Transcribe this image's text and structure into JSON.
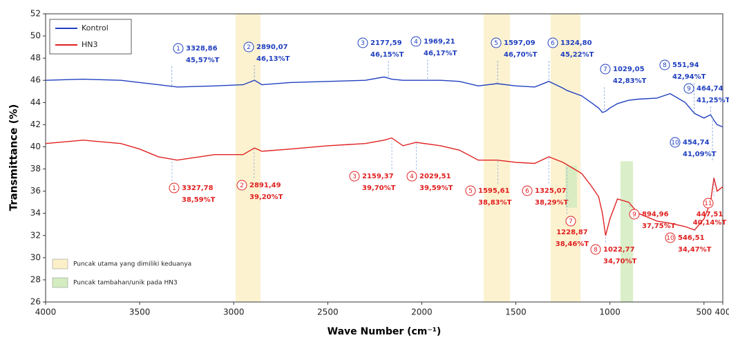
{
  "chart_data": {
    "type": "line",
    "xlabel": "Wave Number (cm⁻¹)",
    "ylabel": "Transmittance (%)",
    "xlim": [
      4000,
      400
    ],
    "ylim": [
      26,
      52
    ],
    "xticks": [
      4000,
      3500,
      3000,
      2500,
      2000,
      1500,
      1000,
      500,
      400
    ],
    "yticks": [
      26,
      28,
      30,
      32,
      34,
      36,
      38,
      40,
      42,
      44,
      46,
      48,
      50,
      52
    ],
    "x": [
      4000,
      3800,
      3600,
      3500,
      3400,
      3300,
      3100,
      2950,
      2890,
      2850,
      2700,
      2500,
      2300,
      2200,
      2160,
      2100,
      2030,
      1900,
      1800,
      1700,
      1600,
      1500,
      1400,
      1325,
      1250,
      1230,
      1150,
      1100,
      1060,
      1040,
      1023,
      1000,
      960,
      900,
      850,
      750,
      680,
      600,
      550,
      500,
      465,
      447,
      430,
      400
    ],
    "series": [
      {
        "name": "Kontrol",
        "color": "#1f3fbf",
        "values": [
          46.0,
          46.1,
          46.0,
          45.8,
          45.6,
          45.4,
          45.5,
          45.6,
          46.0,
          45.6,
          45.8,
          45.9,
          46.0,
          46.3,
          46.1,
          46.0,
          46.0,
          46.0,
          45.9,
          45.5,
          45.7,
          45.5,
          45.4,
          45.9,
          45.3,
          45.1,
          44.6,
          44.0,
          43.5,
          43.1,
          43.2,
          43.5,
          43.9,
          44.2,
          44.3,
          44.4,
          44.8,
          44.0,
          43.0,
          42.6,
          42.9,
          42.4,
          42.0,
          41.8
        ]
      },
      {
        "name": "HN3",
        "color": "#e02020",
        "values": [
          40.3,
          40.6,
          40.3,
          39.8,
          39.1,
          38.8,
          39.3,
          39.3,
          39.9,
          39.6,
          39.8,
          40.1,
          40.3,
          40.6,
          40.8,
          40.1,
          40.4,
          40.1,
          39.7,
          38.8,
          38.8,
          38.6,
          38.5,
          39.1,
          38.6,
          38.4,
          37.6,
          36.5,
          35.5,
          34.0,
          32.0,
          33.5,
          35.3,
          35.0,
          34.0,
          33.3,
          33.1,
          32.8,
          32.5,
          33.5,
          35.0,
          37.2,
          36.0,
          36.4
        ]
      }
    ],
    "regions": [
      {
        "label": "Puncak utama yang dimiliki keduanya",
        "color": "#fbf0c8",
        "spans": [
          [
            2990,
            2857,
            26,
            52
          ],
          [
            1671,
            1531,
            26,
            52
          ],
          [
            1315,
            1156,
            26,
            52
          ]
        ]
      },
      {
        "label": "Puncak tambahan/unik pada HN3",
        "color": "#d3ecc0",
        "spans": [
          [
            1237,
            1175,
            34.5,
            38.3
          ],
          [
            944,
            877,
            26,
            38.7
          ]
        ]
      }
    ],
    "annotations": [
      {
        "series": 0,
        "number": "1",
        "wavenumber": {
          "value": 3328.86,
          "label": "3328,86"
        },
        "transmittance": {
          "value": 45.57,
          "label": "45,57%T"
        }
      },
      {
        "series": 0,
        "number": "2",
        "wavenumber": {
          "value": 2890.07,
          "label": "2890,07"
        },
        "transmittance": {
          "value": 46.13,
          "label": "46,13%T"
        }
      },
      {
        "series": 0,
        "number": "3",
        "wavenumber": {
          "value": 2177.59,
          "label": "2177,59"
        },
        "transmittance": {
          "value": 46.15,
          "label": "46,15%T"
        }
      },
      {
        "series": 0,
        "number": "4",
        "wavenumber": {
          "value": 1969.21,
          "label": "1969,21"
        },
        "transmittance": {
          "value": 46.17,
          "label": "46,17%T"
        }
      },
      {
        "series": 0,
        "number": "5",
        "wavenumber": {
          "value": 1597.09,
          "label": "1597,09"
        },
        "transmittance": {
          "value": 46.7,
          "label": "46,70%T"
        }
      },
      {
        "series": 0,
        "number": "6",
        "wavenumber": {
          "value": 1324.8,
          "label": "1324,80"
        },
        "transmittance": {
          "value": 45.22,
          "label": "45,22%T"
        }
      },
      {
        "series": 0,
        "number": "7",
        "wavenumber": {
          "value": 1029.05,
          "label": "1029,05"
        },
        "transmittance": {
          "value": 42.83,
          "label": "42,83%T"
        }
      },
      {
        "series": 0,
        "number": "8",
        "wavenumber": {
          "value": 551.94,
          "label": "551,94"
        },
        "transmittance": {
          "value": 42.94,
          "label": "42,94%T"
        }
      },
      {
        "series": 0,
        "number": "9",
        "wavenumber": {
          "value": 464.74,
          "label": "464,74"
        },
        "transmittance": {
          "value": 41.25,
          "label": "41,25%T"
        }
      },
      {
        "series": 0,
        "number": "10",
        "wavenumber": {
          "value": 454.74,
          "label": "454,74"
        },
        "transmittance": {
          "value": 41.09,
          "label": "41,09%T"
        }
      },
      {
        "series": 1,
        "number": "1",
        "wavenumber": {
          "value": 3327.78,
          "label": "3327,78"
        },
        "transmittance": {
          "value": 38.59,
          "label": "38,59%T"
        }
      },
      {
        "series": 1,
        "number": "2",
        "wavenumber": {
          "value": 2891.49,
          "label": "2891,49"
        },
        "transmittance": {
          "value": 39.2,
          "label": "39,20%T"
        }
      },
      {
        "series": 1,
        "number": "3",
        "wavenumber": {
          "value": 2159.37,
          "label": "2159,37"
        },
        "transmittance": {
          "value": 39.7,
          "label": "39,70%T"
        }
      },
      {
        "series": 1,
        "number": "4",
        "wavenumber": {
          "value": 2029.51,
          "label": "2029,51"
        },
        "transmittance": {
          "value": 39.59,
          "label": "39,59%T"
        }
      },
      {
        "series": 1,
        "number": "5",
        "wavenumber": {
          "value": 1595.61,
          "label": "1595,61"
        },
        "transmittance": {
          "value": 38.83,
          "label": "38,83%T"
        }
      },
      {
        "series": 1,
        "number": "6",
        "wavenumber": {
          "value": 1325.07,
          "label": "1325,07"
        },
        "transmittance": {
          "value": 38.29,
          "label": "38,29%T"
        }
      },
      {
        "series": 1,
        "number": "7",
        "wavenumber": {
          "value": 1228.87,
          "label": "1228,87"
        },
        "transmittance": {
          "value": 38.46,
          "label": "38,46%T"
        }
      },
      {
        "series": 1,
        "number": "8",
        "wavenumber": {
          "value": 1022.77,
          "label": "1022,77"
        },
        "transmittance": {
          "value": 34.7,
          "label": "34,70%T"
        }
      },
      {
        "series": 1,
        "number": "9",
        "wavenumber": {
          "value": 894.96,
          "label": "894,96"
        },
        "transmittance": {
          "value": 37.75,
          "label": "37,75%T"
        }
      },
      {
        "series": 1,
        "number": "10",
        "wavenumber": {
          "value": 546.51,
          "label": "546,51"
        },
        "transmittance": {
          "value": 34.47,
          "label": "34,47%T"
        }
      },
      {
        "series": 1,
        "number": "11",
        "wavenumber": {
          "value": 447.51,
          "label": "447,51"
        },
        "transmittance": {
          "value": 40.14,
          "label": "40,14%T"
        }
      }
    ]
  }
}
